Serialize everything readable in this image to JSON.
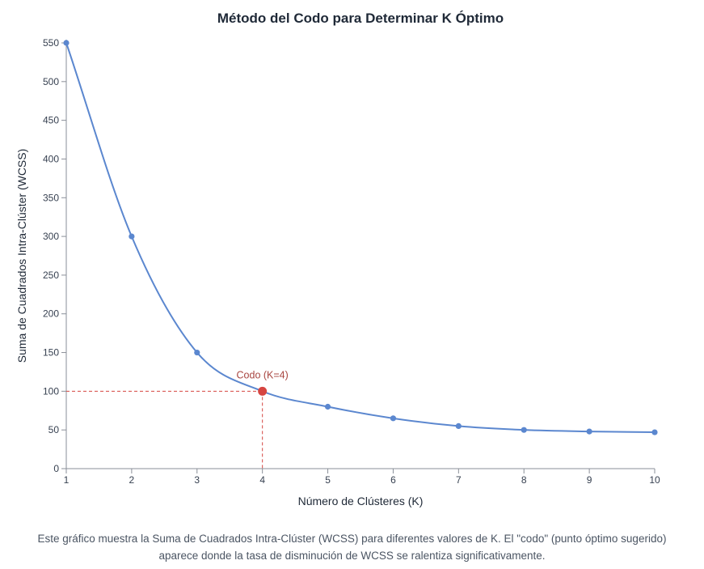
{
  "chart_data": {
    "type": "line",
    "title": "Método del Codo para Determinar K Óptimo",
    "xlabel": "Número de Clústeres (K)",
    "ylabel": "Suma de Cuadrados Intra-Clúster (WCSS)",
    "x": [
      1,
      2,
      3,
      4,
      5,
      6,
      7,
      8,
      9,
      10
    ],
    "series": [
      {
        "values": [
          550,
          300,
          150,
          100,
          80,
          65,
          55,
          50,
          48,
          47
        ]
      }
    ],
    "xlim": [
      1,
      10
    ],
    "ylim": [
      0,
      550
    ],
    "x_ticks": [
      "1",
      "2",
      "3",
      "4",
      "5",
      "6",
      "7",
      "8",
      "9",
      "10"
    ],
    "y_ticks": [
      "0",
      "50",
      "100",
      "150",
      "200",
      "250",
      "300",
      "350",
      "400",
      "450",
      "500",
      "550"
    ],
    "annotation": {
      "text": "Codo (K=4)",
      "x": 4,
      "y": 100
    },
    "grid": false,
    "colors": {
      "line": "#5b87cf",
      "elbow": "#d64541",
      "annotation_text": "#a84540"
    }
  },
  "caption": "Este gráfico muestra la Suma de Cuadrados Intra-Clúster (WCSS) para diferentes valores de K. El \"codo\" (punto óptimo sugerido) aparece donde la tasa de disminución de WCSS se ralentiza significativamente."
}
